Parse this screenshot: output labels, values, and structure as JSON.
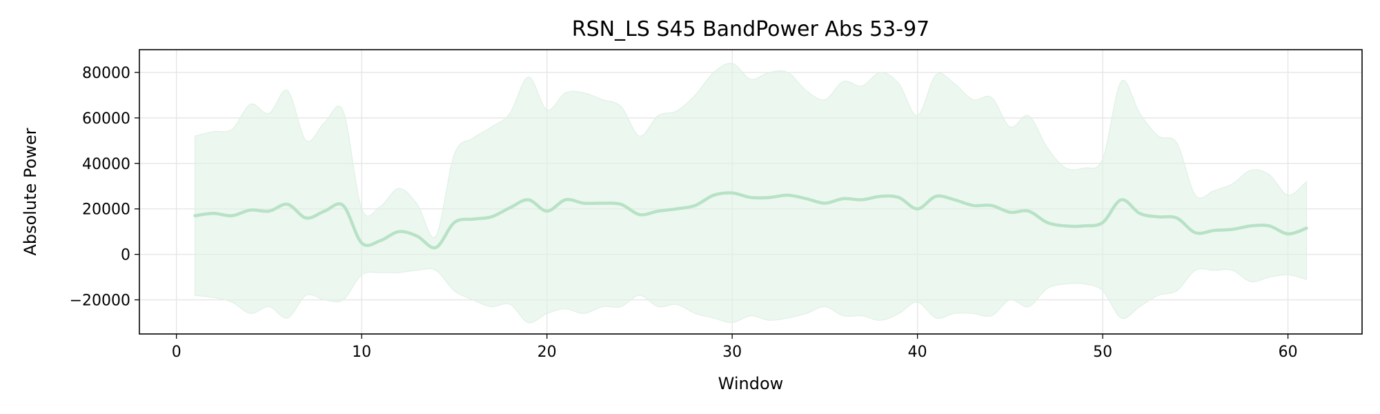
{
  "chart_data": {
    "type": "line",
    "title": "RSN_LS S45 BandPower Abs 53-97",
    "xlabel": "Window",
    "ylabel": "Absolute Power",
    "xlim": [
      -2,
      64
    ],
    "ylim": [
      -35000,
      90000
    ],
    "xticks": [
      0,
      10,
      20,
      30,
      40,
      50,
      60
    ],
    "yticks": [
      -20000,
      0,
      20000,
      40000,
      60000,
      80000
    ],
    "ytick_labels": [
      "−20000",
      "0",
      "20000",
      "40000",
      "60000",
      "80000"
    ],
    "grid": true,
    "colors": {
      "line": "#b7e2c6",
      "band": "#dff1e5"
    },
    "x": [
      1,
      2,
      3,
      4,
      5,
      6,
      7,
      8,
      9,
      10,
      11,
      12,
      13,
      14,
      15,
      16,
      17,
      18,
      19,
      20,
      21,
      22,
      23,
      24,
      25,
      26,
      27,
      28,
      29,
      30,
      31,
      32,
      33,
      34,
      35,
      36,
      37,
      38,
      39,
      40,
      41,
      42,
      43,
      44,
      45,
      46,
      47,
      48,
      49,
      50,
      51,
      52,
      53,
      54,
      55,
      56,
      57,
      58,
      59,
      60,
      61
    ],
    "series": [
      {
        "mean": [
          17000,
          18000,
          17000,
          19500,
          19000,
          22000,
          16000,
          19000,
          21500,
          5000,
          6000,
          10000,
          8000,
          3000,
          14000,
          15500,
          16500,
          20500,
          24000,
          19000,
          24000,
          22500,
          22500,
          22000,
          17500,
          19000,
          20000,
          21500,
          26000,
          27000,
          25000,
          25000,
          26000,
          24500,
          22500,
          24500,
          24000,
          25500,
          25000,
          20000,
          25500,
          24000,
          21500,
          21500,
          18500,
          19000,
          14000,
          12500,
          12500,
          14000,
          24000,
          18000,
          16500,
          16000,
          9500,
          10500,
          11000,
          12500,
          12500,
          9000,
          11500
        ],
        "upper": [
          52000,
          54000,
          55000,
          66000,
          62000,
          72000,
          50000,
          58000,
          63000,
          20000,
          21000,
          29000,
          22000,
          8000,
          44000,
          51000,
          56000,
          62000,
          78000,
          63500,
          71000,
          71000,
          68000,
          65000,
          52000,
          61000,
          63000,
          70000,
          80000,
          84000,
          77000,
          80000,
          80000,
          72000,
          68000,
          76000,
          74000,
          80000,
          75000,
          61000,
          79000,
          75000,
          68000,
          69000,
          56000,
          61000,
          47000,
          38000,
          38000,
          42000,
          76000,
          62000,
          52000,
          49000,
          26000,
          28000,
          31000,
          37000,
          35000,
          26000,
          32000
        ],
        "lower": [
          -18000,
          -19000,
          -21000,
          -26000,
          -23000,
          -28000,
          -18000,
          -20000,
          -20000,
          -9000,
          -8000,
          -8000,
          -7000,
          -7000,
          -16000,
          -20000,
          -23000,
          -22000,
          -30000,
          -26000,
          -24000,
          -26000,
          -23000,
          -23000,
          -18000,
          -23000,
          -22000,
          -26000,
          -28000,
          -30000,
          -27000,
          -29000,
          -28000,
          -26000,
          -23000,
          -27000,
          -27000,
          -29000,
          -26000,
          -21000,
          -28000,
          -26000,
          -26000,
          -27000,
          -20000,
          -23000,
          -15000,
          -13000,
          -13000,
          -16000,
          -28000,
          -23000,
          -18000,
          -16000,
          -7000,
          -7000,
          -7000,
          -12000,
          -10000,
          -9000,
          -11000
        ]
      }
    ]
  }
}
